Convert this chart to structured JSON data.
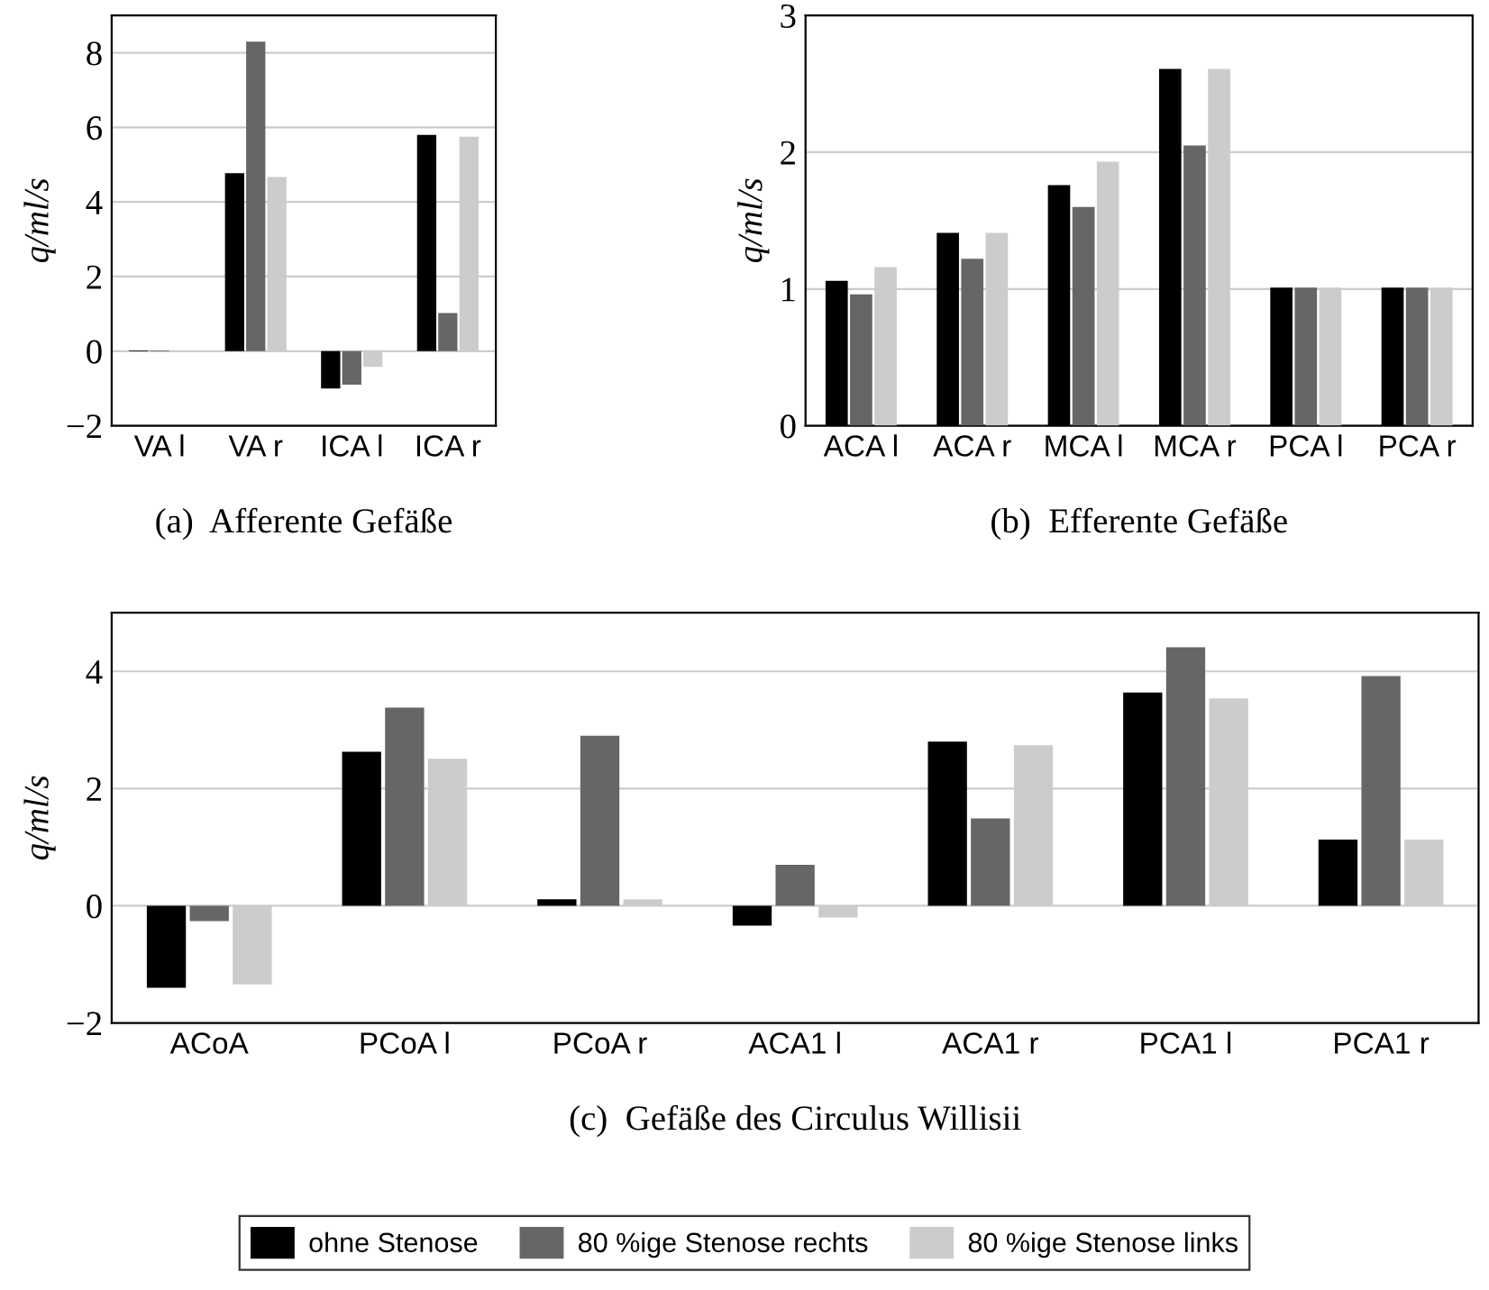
{
  "chart_data": [
    {
      "type": "bar",
      "title": "(a)  Afferente Gefäße",
      "ylabel": "q/ml/s",
      "categories": [
        "VA l",
        "VA r",
        "ICA l",
        "ICA r"
      ],
      "ylim": [
        -2,
        9
      ],
      "yticks": [
        {
          "value": -2,
          "label": "−2"
        },
        0,
        2,
        4,
        6,
        8
      ],
      "grid": "y",
      "legend": "bottom",
      "series": [
        {
          "name": "ohne Stenose",
          "color": "#000000",
          "values": [
            0.02,
            4.77,
            -1.0,
            5.8
          ]
        },
        {
          "name": "80 %ige Stenose rechts",
          "color": "#666666",
          "values": [
            0.02,
            8.3,
            -0.9,
            1.02
          ]
        },
        {
          "name": "80 %ige Stenose links",
          "color": "#cccccc",
          "values": [
            0.0,
            4.67,
            -0.42,
            5.75
          ]
        }
      ]
    },
    {
      "type": "bar",
      "title": "(b)  Efferente Gefäße",
      "ylabel": "q/ml/s",
      "categories": [
        "ACA l",
        "ACA r",
        "MCA l",
        "MCA r",
        "PCA l",
        "PCA r"
      ],
      "ylim": [
        0,
        3
      ],
      "yticks": [
        0,
        1,
        2,
        3
      ],
      "grid": "y",
      "series": [
        {
          "color": "#000000",
          "values": [
            1.06,
            1.41,
            1.76,
            2.61,
            1.01,
            1.01
          ]
        },
        {
          "color": "#666666",
          "values": [
            0.96,
            1.22,
            1.6,
            2.05,
            1.01,
            1.01
          ]
        },
        {
          "color": "#cccccc",
          "values": [
            1.16,
            1.41,
            1.93,
            2.61,
            1.01,
            1.01
          ]
        }
      ]
    },
    {
      "type": "bar",
      "title": "(c)  Gefäße des Circulus Willisii",
      "ylabel": "q/ml/s",
      "categories": [
        "ACoA",
        "PCoA l",
        "PCoA r",
        "ACA1 l",
        "ACA1 r",
        "PCA1 l",
        "PCA1 r"
      ],
      "ylim": [
        -2,
        5
      ],
      "yticks": [
        {
          "value": -2,
          "label": "−2"
        },
        0,
        2,
        4
      ],
      "grid": "y",
      "series": [
        {
          "color": "#000000",
          "values": [
            -1.4,
            2.63,
            0.11,
            -0.34,
            2.8,
            3.64,
            1.13
          ]
        },
        {
          "color": "#666666",
          "values": [
            -0.26,
            3.38,
            2.9,
            0.7,
            1.49,
            4.41,
            3.92
          ]
        },
        {
          "color": "#cccccc",
          "values": [
            -1.34,
            2.51,
            0.11,
            -0.2,
            2.74,
            3.54,
            1.13
          ]
        }
      ]
    }
  ]
}
